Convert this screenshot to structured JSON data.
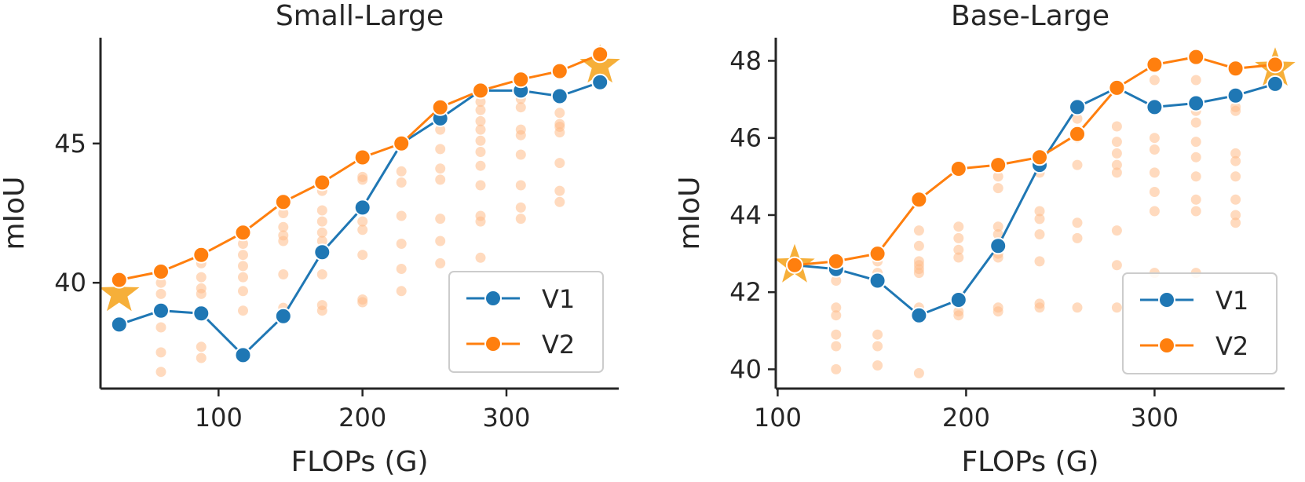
{
  "colors": {
    "v1": "#1f77b4",
    "v2": "#ff7f0e",
    "scatter": "#ffbb88",
    "star": "#f5a623",
    "axis": "#262626"
  },
  "chart_data": [
    {
      "type": "line",
      "title": "Small-Large",
      "xlabel": "FLOPs (G)",
      "ylabel": "mIoU",
      "xlim": [
        18,
        378
      ],
      "ylim": [
        36.2,
        48.8
      ],
      "xticks": [
        100,
        200,
        300
      ],
      "yticks": [
        40,
        45
      ],
      "grid": false,
      "legend": "lower-right",
      "series": [
        {
          "name": "V1",
          "x": [
            31,
            60,
            88,
            117,
            145,
            172,
            200,
            227,
            254,
            282,
            310,
            337,
            365
          ],
          "y": [
            38.5,
            39.0,
            38.9,
            37.4,
            38.8,
            41.1,
            42.7,
            45.0,
            45.9,
            46.9,
            46.9,
            46.7,
            47.2
          ]
        },
        {
          "name": "V2",
          "x": [
            31,
            60,
            88,
            117,
            145,
            172,
            200,
            227,
            254,
            282,
            310,
            337,
            365
          ],
          "y": [
            40.1,
            40.4,
            41.0,
            41.8,
            42.9,
            43.6,
            44.5,
            45.0,
            46.3,
            46.9,
            47.3,
            47.6,
            48.2
          ]
        }
      ],
      "stars": [
        {
          "x": 31,
          "y": 39.6
        },
        {
          "x": 365,
          "y": 47.8
        }
      ],
      "scatter": [
        {
          "x": 60,
          "y": 39.6
        },
        {
          "x": 60,
          "y": 38.4
        },
        {
          "x": 60,
          "y": 37.5
        },
        {
          "x": 60,
          "y": 36.8
        },
        {
          "x": 60,
          "y": 40.0
        },
        {
          "x": 88,
          "y": 40.7
        },
        {
          "x": 88,
          "y": 40.2
        },
        {
          "x": 88,
          "y": 39.8
        },
        {
          "x": 88,
          "y": 39.6
        },
        {
          "x": 88,
          "y": 37.7
        },
        {
          "x": 88,
          "y": 37.3
        },
        {
          "x": 117,
          "y": 41.4
        },
        {
          "x": 117,
          "y": 41.0
        },
        {
          "x": 117,
          "y": 40.6
        },
        {
          "x": 117,
          "y": 40.2
        },
        {
          "x": 117,
          "y": 39.7
        },
        {
          "x": 117,
          "y": 39.0
        },
        {
          "x": 145,
          "y": 42.5
        },
        {
          "x": 145,
          "y": 42.0
        },
        {
          "x": 145,
          "y": 41.7
        },
        {
          "x": 145,
          "y": 41.5
        },
        {
          "x": 145,
          "y": 40.3
        },
        {
          "x": 145,
          "y": 39.1
        },
        {
          "x": 172,
          "y": 43.3
        },
        {
          "x": 172,
          "y": 42.6
        },
        {
          "x": 172,
          "y": 42.2
        },
        {
          "x": 172,
          "y": 41.8
        },
        {
          "x": 172,
          "y": 41.5
        },
        {
          "x": 172,
          "y": 40.3
        },
        {
          "x": 172,
          "y": 39.2
        },
        {
          "x": 172,
          "y": 39.0
        },
        {
          "x": 200,
          "y": 44.4
        },
        {
          "x": 200,
          "y": 43.8
        },
        {
          "x": 200,
          "y": 43.7
        },
        {
          "x": 200,
          "y": 42.2
        },
        {
          "x": 200,
          "y": 41.9
        },
        {
          "x": 200,
          "y": 41.0
        },
        {
          "x": 200,
          "y": 39.4
        },
        {
          "x": 200,
          "y": 39.3
        },
        {
          "x": 227,
          "y": 44.0
        },
        {
          "x": 227,
          "y": 43.6
        },
        {
          "x": 227,
          "y": 42.4
        },
        {
          "x": 227,
          "y": 41.4
        },
        {
          "x": 227,
          "y": 40.5
        },
        {
          "x": 227,
          "y": 39.7
        },
        {
          "x": 254,
          "y": 45.5
        },
        {
          "x": 254,
          "y": 44.8
        },
        {
          "x": 254,
          "y": 44.1
        },
        {
          "x": 254,
          "y": 43.7
        },
        {
          "x": 254,
          "y": 42.3
        },
        {
          "x": 254,
          "y": 41.5
        },
        {
          "x": 254,
          "y": 40.7
        },
        {
          "x": 282,
          "y": 46.5
        },
        {
          "x": 282,
          "y": 46.2
        },
        {
          "x": 282,
          "y": 45.8
        },
        {
          "x": 282,
          "y": 45.5
        },
        {
          "x": 282,
          "y": 45.1
        },
        {
          "x": 282,
          "y": 44.7
        },
        {
          "x": 282,
          "y": 44.2
        },
        {
          "x": 282,
          "y": 43.5
        },
        {
          "x": 282,
          "y": 42.4
        },
        {
          "x": 282,
          "y": 42.2
        },
        {
          "x": 282,
          "y": 40.9
        },
        {
          "x": 310,
          "y": 46.6
        },
        {
          "x": 310,
          "y": 46.3
        },
        {
          "x": 310,
          "y": 45.5
        },
        {
          "x": 310,
          "y": 45.3
        },
        {
          "x": 310,
          "y": 44.6
        },
        {
          "x": 310,
          "y": 43.5
        },
        {
          "x": 310,
          "y": 42.7
        },
        {
          "x": 310,
          "y": 42.3
        },
        {
          "x": 337,
          "y": 46.1
        },
        {
          "x": 337,
          "y": 45.7
        },
        {
          "x": 337,
          "y": 45.6
        },
        {
          "x": 337,
          "y": 45.4
        },
        {
          "x": 337,
          "y": 44.3
        },
        {
          "x": 337,
          "y": 43.3
        },
        {
          "x": 337,
          "y": 42.9
        }
      ]
    },
    {
      "type": "line",
      "title": "Base-Large",
      "xlabel": "FLOPs (G)",
      "ylabel": "mIoU",
      "xlim": [
        99,
        369
      ],
      "ylim": [
        39.5,
        48.6
      ],
      "xticks": [
        100,
        200,
        300
      ],
      "yticks": [
        40,
        42,
        44,
        46,
        48
      ],
      "grid": false,
      "legend": "lower-right",
      "series": [
        {
          "name": "V1",
          "x": [
            109,
            131,
            153,
            175,
            196,
            217,
            239,
            259,
            280,
            300,
            322,
            343,
            364
          ],
          "y": [
            42.7,
            42.6,
            42.3,
            41.4,
            41.8,
            43.2,
            45.3,
            46.8,
            47.3,
            46.8,
            46.9,
            47.1,
            47.4
          ]
        },
        {
          "name": "V2",
          "x": [
            109,
            131,
            153,
            175,
            196,
            217,
            239,
            259,
            280,
            300,
            322,
            343,
            364
          ],
          "y": [
            42.7,
            42.8,
            43.0,
            44.4,
            45.2,
            45.3,
            45.5,
            46.1,
            47.3,
            47.9,
            48.1,
            47.8,
            47.9
          ]
        }
      ],
      "stars": [
        {
          "x": 109,
          "y": 42.7
        },
        {
          "x": 364,
          "y": 47.8
        }
      ],
      "scatter": [
        {
          "x": 131,
          "y": 42.3
        },
        {
          "x": 131,
          "y": 41.6
        },
        {
          "x": 131,
          "y": 41.4
        },
        {
          "x": 131,
          "y": 40.9
        },
        {
          "x": 131,
          "y": 40.6
        },
        {
          "x": 131,
          "y": 40.0
        },
        {
          "x": 153,
          "y": 42.8
        },
        {
          "x": 153,
          "y": 42.5
        },
        {
          "x": 153,
          "y": 40.9
        },
        {
          "x": 153,
          "y": 40.6
        },
        {
          "x": 153,
          "y": 40.1
        },
        {
          "x": 175,
          "y": 43.6
        },
        {
          "x": 175,
          "y": 43.2
        },
        {
          "x": 175,
          "y": 42.8
        },
        {
          "x": 175,
          "y": 42.7
        },
        {
          "x": 175,
          "y": 42.6
        },
        {
          "x": 175,
          "y": 42.5
        },
        {
          "x": 175,
          "y": 41.6
        },
        {
          "x": 175,
          "y": 39.9
        },
        {
          "x": 196,
          "y": 43.7
        },
        {
          "x": 196,
          "y": 43.4
        },
        {
          "x": 196,
          "y": 43.1
        },
        {
          "x": 196,
          "y": 42.9
        },
        {
          "x": 196,
          "y": 41.5
        },
        {
          "x": 196,
          "y": 41.4
        },
        {
          "x": 217,
          "y": 45.0
        },
        {
          "x": 217,
          "y": 44.7
        },
        {
          "x": 217,
          "y": 43.7
        },
        {
          "x": 217,
          "y": 43.5
        },
        {
          "x": 217,
          "y": 43.0
        },
        {
          "x": 217,
          "y": 42.9
        },
        {
          "x": 217,
          "y": 41.6
        },
        {
          "x": 217,
          "y": 41.5
        },
        {
          "x": 239,
          "y": 45.1
        },
        {
          "x": 239,
          "y": 44.1
        },
        {
          "x": 239,
          "y": 43.9
        },
        {
          "x": 239,
          "y": 43.5
        },
        {
          "x": 239,
          "y": 42.8
        },
        {
          "x": 239,
          "y": 41.7
        },
        {
          "x": 239,
          "y": 41.6
        },
        {
          "x": 259,
          "y": 46.5
        },
        {
          "x": 259,
          "y": 46.0
        },
        {
          "x": 259,
          "y": 45.3
        },
        {
          "x": 259,
          "y": 43.8
        },
        {
          "x": 259,
          "y": 43.4
        },
        {
          "x": 259,
          "y": 41.6
        },
        {
          "x": 280,
          "y": 46.3
        },
        {
          "x": 280,
          "y": 45.9
        },
        {
          "x": 280,
          "y": 45.6
        },
        {
          "x": 280,
          "y": 45.3
        },
        {
          "x": 280,
          "y": 45.1
        },
        {
          "x": 280,
          "y": 43.6
        },
        {
          "x": 280,
          "y": 42.7
        },
        {
          "x": 280,
          "y": 41.6
        },
        {
          "x": 300,
          "y": 47.5
        },
        {
          "x": 300,
          "y": 46.0
        },
        {
          "x": 300,
          "y": 45.7
        },
        {
          "x": 300,
          "y": 45.1
        },
        {
          "x": 300,
          "y": 44.6
        },
        {
          "x": 300,
          "y": 44.1
        },
        {
          "x": 300,
          "y": 42.5
        },
        {
          "x": 322,
          "y": 47.5
        },
        {
          "x": 322,
          "y": 46.7
        },
        {
          "x": 322,
          "y": 46.4
        },
        {
          "x": 322,
          "y": 45.9
        },
        {
          "x": 322,
          "y": 45.5
        },
        {
          "x": 322,
          "y": 45.0
        },
        {
          "x": 322,
          "y": 44.4
        },
        {
          "x": 322,
          "y": 44.1
        },
        {
          "x": 322,
          "y": 42.5
        },
        {
          "x": 343,
          "y": 46.8
        },
        {
          "x": 343,
          "y": 46.7
        },
        {
          "x": 343,
          "y": 45.6
        },
        {
          "x": 343,
          "y": 45.4
        },
        {
          "x": 343,
          "y": 45.0
        },
        {
          "x": 343,
          "y": 44.4
        },
        {
          "x": 343,
          "y": 44.0
        },
        {
          "x": 343,
          "y": 43.8
        }
      ]
    }
  ]
}
